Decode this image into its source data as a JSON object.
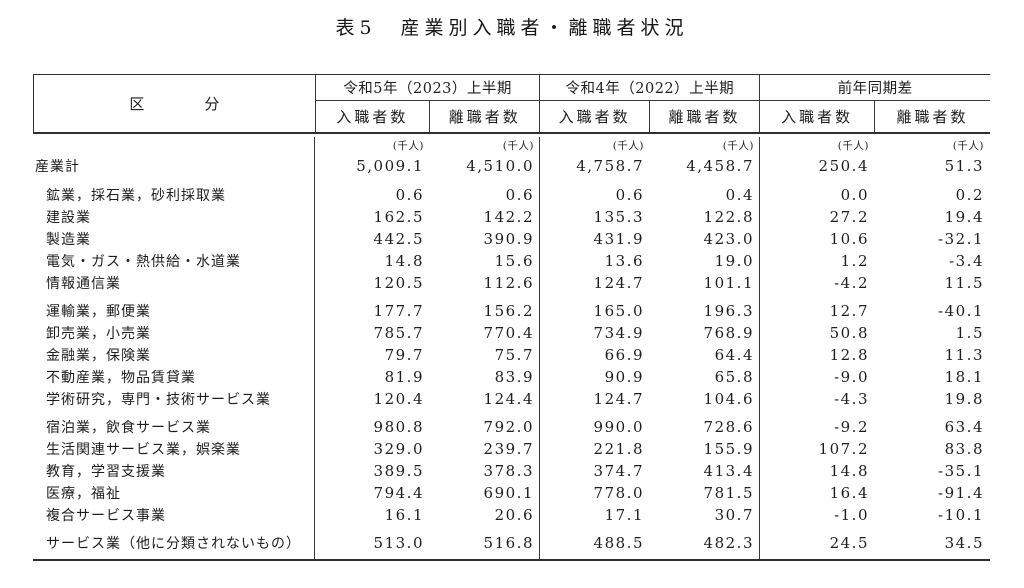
{
  "title": "表5　産業別入職者・離職者状況",
  "table": {
    "corner_label": "区　　　　分",
    "unit_label": "(千人)",
    "col_groups": [
      {
        "label": "令和5年（2023）上半期",
        "sub": [
          "入職者数",
          "離職者数"
        ]
      },
      {
        "label": "令和4年（2022）上半期",
        "sub": [
          "入職者数",
          "離職者数"
        ]
      },
      {
        "label": "前年同期差",
        "sub": [
          "入職者数",
          "離職者数"
        ]
      }
    ],
    "rows": [
      {
        "label": "産業計",
        "indent": false,
        "total": true,
        "section_start": false,
        "values": [
          "5,009.1",
          "4,510.0",
          "4,758.7",
          "4,458.7",
          "250.4",
          "51.3"
        ]
      },
      {
        "label": "鉱業，採石業，砂利採取業",
        "indent": true,
        "section_start": true,
        "values": [
          "0.6",
          "0.6",
          "0.6",
          "0.4",
          "0.0",
          "0.2"
        ]
      },
      {
        "label": "建設業",
        "indent": true,
        "values": [
          "162.5",
          "142.2",
          "135.3",
          "122.8",
          "27.2",
          "19.4"
        ]
      },
      {
        "label": "製造業",
        "indent": true,
        "values": [
          "442.5",
          "390.9",
          "431.9",
          "423.0",
          "10.6",
          "-32.1"
        ]
      },
      {
        "label": "電気・ガス・熱供給・水道業",
        "indent": true,
        "values": [
          "14.8",
          "15.6",
          "13.6",
          "19.0",
          "1.2",
          "-3.4"
        ]
      },
      {
        "label": "情報通信業",
        "indent": true,
        "values": [
          "120.5",
          "112.6",
          "124.7",
          "101.1",
          "-4.2",
          "11.5"
        ]
      },
      {
        "label": "運輸業，郵便業",
        "indent": true,
        "section_start": true,
        "values": [
          "177.7",
          "156.2",
          "165.0",
          "196.3",
          "12.7",
          "-40.1"
        ]
      },
      {
        "label": "卸売業，小売業",
        "indent": true,
        "values": [
          "785.7",
          "770.4",
          "734.9",
          "768.9",
          "50.8",
          "1.5"
        ]
      },
      {
        "label": "金融業，保険業",
        "indent": true,
        "values": [
          "79.7",
          "75.7",
          "66.9",
          "64.4",
          "12.8",
          "11.3"
        ]
      },
      {
        "label": "不動産業，物品賃貸業",
        "indent": true,
        "values": [
          "81.9",
          "83.9",
          "90.9",
          "65.8",
          "-9.0",
          "18.1"
        ]
      },
      {
        "label": "学術研究，専門・技術サービス業",
        "indent": true,
        "values": [
          "120.4",
          "124.4",
          "124.7",
          "104.6",
          "-4.3",
          "19.8"
        ]
      },
      {
        "label": "宿泊業，飲食サービス業",
        "indent": true,
        "section_start": true,
        "values": [
          "980.8",
          "792.0",
          "990.0",
          "728.6",
          "-9.2",
          "63.4"
        ]
      },
      {
        "label": "生活関連サービス業，娯楽業",
        "indent": true,
        "values": [
          "329.0",
          "239.7",
          "221.8",
          "155.9",
          "107.2",
          "83.8"
        ]
      },
      {
        "label": "教育，学習支援業",
        "indent": true,
        "values": [
          "389.5",
          "378.3",
          "374.7",
          "413.4",
          "14.8",
          "-35.1"
        ]
      },
      {
        "label": "医療，福祉",
        "indent": true,
        "values": [
          "794.4",
          "690.1",
          "778.0",
          "781.5",
          "16.4",
          "-91.4"
        ]
      },
      {
        "label": "複合サービス事業",
        "indent": true,
        "values": [
          "16.1",
          "20.6",
          "17.1",
          "30.7",
          "-1.0",
          "-10.1"
        ]
      },
      {
        "label": "サービス業（他に分類されないもの）",
        "indent": true,
        "section_start": true,
        "values": [
          "513.0",
          "516.8",
          "488.5",
          "482.3",
          "24.5",
          "34.5"
        ]
      }
    ]
  }
}
